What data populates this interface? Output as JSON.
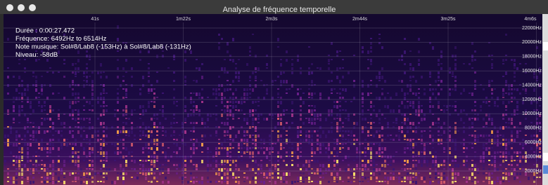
{
  "window": {
    "title": "Analyse de fréquence temporelle"
  },
  "overlay": {
    "lines": [
      "Durée : 0:00:27.472",
      "Fréquence: 6492Hz to 6514Hz",
      "Note musique: Sol#8/Lab8 (-153Hz) à Sol#8/Lab8 (-131Hz)",
      "Niveau: -58dB"
    ]
  },
  "time_axis": {
    "labels": [
      "41s",
      "1m22s",
      "2m3s",
      "2m44s",
      "3m25s",
      "4m6s"
    ]
  },
  "frequency_axis": {
    "labels": [
      "22000Hz",
      "20000Hz",
      "18000Hz",
      "16000Hz",
      "14000Hz",
      "12000Hz",
      "10000Hz",
      "8000Hz",
      "6000Hz",
      "4000Hz",
      "2000Hz"
    ]
  }
}
